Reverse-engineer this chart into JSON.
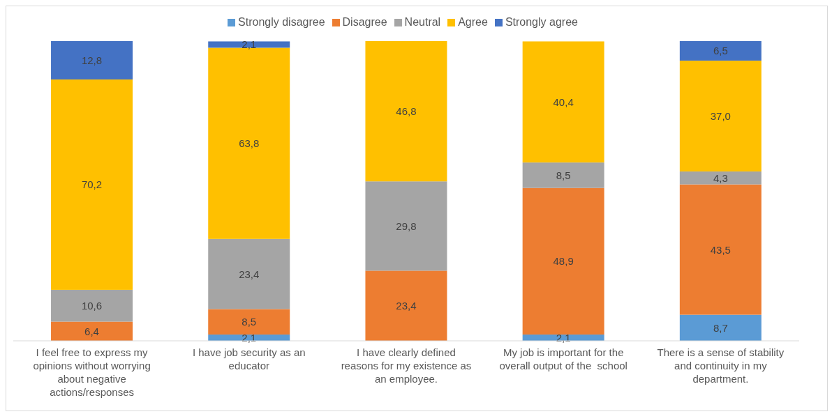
{
  "chart_data": {
    "type": "bar",
    "stacked": true,
    "categories": [
      "I feel free to express my opinions without worrying about negative actions/responses",
      "I have job security as an educator",
      "I have clearly defined reasons for my existence as an employee.",
      "My job is important for the overall output of the  school",
      "There is a sense of stability and continuity in my department."
    ],
    "series": [
      {
        "name": "Strongly disagree",
        "color": "#5b9bd5",
        "values": [
          null,
          2.1,
          null,
          2.1,
          8.7
        ],
        "value_labels": [
          null,
          "2,1",
          null,
          "2,1",
          "8,7"
        ]
      },
      {
        "name": "Disagree",
        "color": "#ed7d31",
        "values": [
          6.4,
          8.5,
          23.4,
          48.9,
          43.5
        ],
        "value_labels": [
          "6,4",
          "8,5",
          "23,4",
          "48,9",
          "43,5"
        ]
      },
      {
        "name": "Neutral",
        "color": "#a5a5a5",
        "values": [
          10.6,
          23.4,
          29.8,
          8.5,
          4.3
        ],
        "value_labels": [
          "10,6",
          "23,4",
          "29,8",
          "8,5",
          "4,3"
        ]
      },
      {
        "name": "Agree",
        "color": "#ffc000",
        "values": [
          70.2,
          63.8,
          46.8,
          40.4,
          37.0
        ],
        "value_labels": [
          "70,2",
          "63,8",
          "46,8",
          "40,4",
          "37,0"
        ]
      },
      {
        "name": "Strongly agree",
        "color": "#4472c4",
        "values": [
          12.8,
          2.1,
          null,
          null,
          6.5
        ],
        "value_labels": [
          "12,8",
          "2,1",
          null,
          null,
          "6,5"
        ]
      }
    ],
    "ylim": [
      0,
      100
    ],
    "tick_labels": "x",
    "grid": false,
    "legend": "top"
  }
}
